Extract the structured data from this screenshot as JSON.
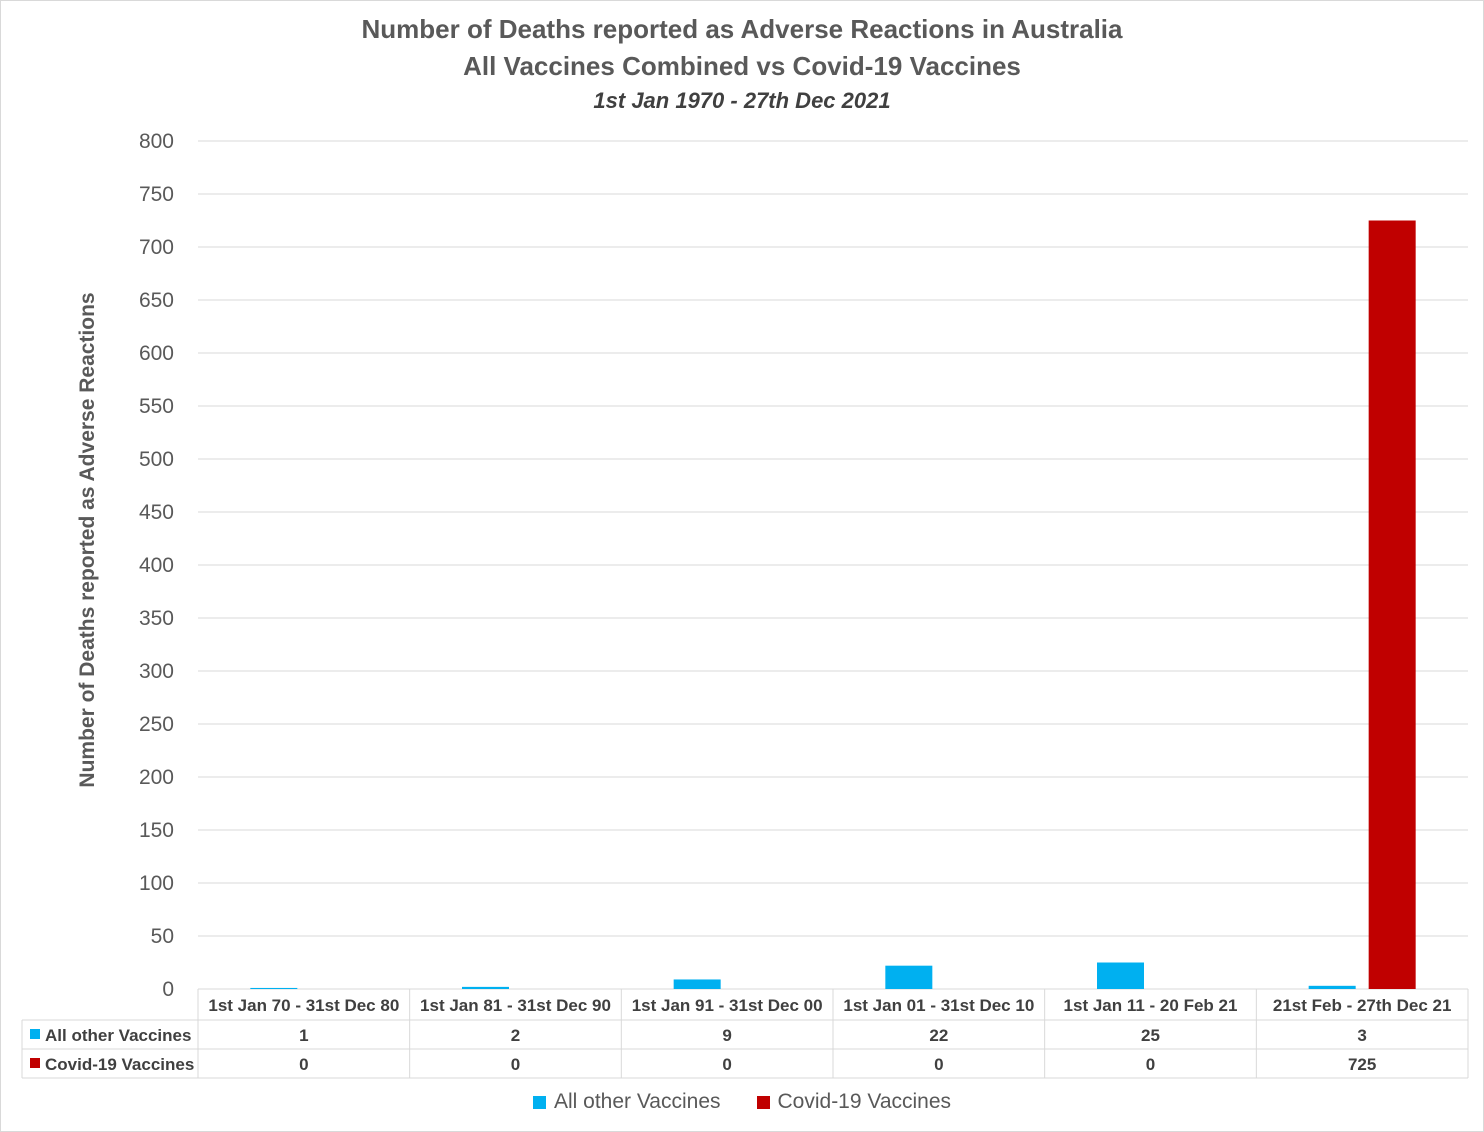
{
  "chart_data": {
    "type": "bar",
    "title": "Number of Deaths reported as Adverse Reactions in Australia",
    "title_line2": "All Vaccines Combined vs Covid-19 Vaccines",
    "subtitle": "1st Jan 1970 - 27th Dec 2021",
    "xlabel": "",
    "ylabel": "Number of Deaths reported as Adverse Reactions",
    "ylim": [
      0,
      800
    ],
    "yticks": [
      0,
      50,
      100,
      150,
      200,
      250,
      300,
      350,
      400,
      450,
      500,
      550,
      600,
      650,
      700,
      750,
      800
    ],
    "grid": true,
    "legend_position": "bottom",
    "data_table": true,
    "categories": [
      "1st Jan 70 - 31st Dec 80",
      "1st Jan 81 - 31st Dec 90",
      "1st Jan 91 - 31st Dec 00",
      "1st Jan 01 - 31st Dec 10",
      "1st Jan 11 - 20 Feb 21",
      "21st Feb - 27th Dec 21"
    ],
    "series": [
      {
        "name": "All other Vaccines",
        "color": "#00b0f0",
        "values": [
          1,
          2,
          9,
          22,
          25,
          3
        ]
      },
      {
        "name": "Covid-19 Vaccines",
        "color": "#c00000",
        "values": [
          0,
          0,
          0,
          0,
          0,
          725
        ]
      }
    ]
  }
}
